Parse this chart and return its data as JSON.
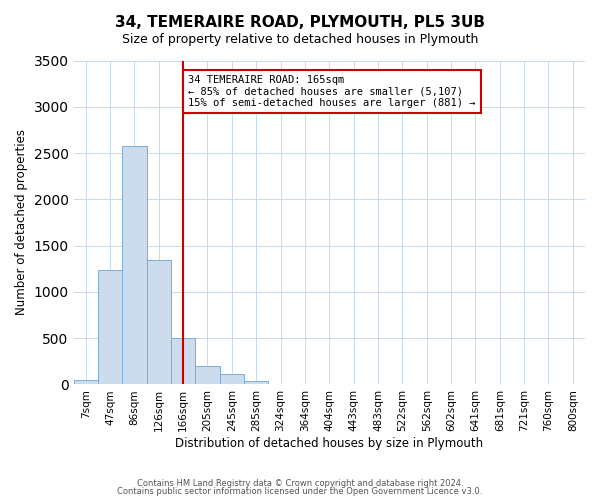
{
  "title": "34, TEMERAIRE ROAD, PLYMOUTH, PL5 3UB",
  "subtitle": "Size of property relative to detached houses in Plymouth",
  "xlabel": "Distribution of detached houses by size in Plymouth",
  "ylabel": "Number of detached properties",
  "bin_labels": [
    "7sqm",
    "47sqm",
    "86sqm",
    "126sqm",
    "166sqm",
    "205sqm",
    "245sqm",
    "285sqm",
    "324sqm",
    "364sqm",
    "404sqm",
    "443sqm",
    "483sqm",
    "522sqm",
    "562sqm",
    "602sqm",
    "641sqm",
    "681sqm",
    "721sqm",
    "760sqm",
    "800sqm"
  ],
  "bar_values": [
    50,
    1240,
    2580,
    1340,
    500,
    200,
    110,
    40,
    10,
    2,
    1,
    0,
    0,
    0,
    0,
    0,
    0,
    0,
    0,
    0,
    0
  ],
  "bar_color": "#ccdcec",
  "bar_edgecolor": "#7bafd4",
  "vline_x": 4,
  "vline_color": "#cc0000",
  "ylim": [
    0,
    3500
  ],
  "annotation_title": "34 TEMERAIRE ROAD: 165sqm",
  "annotation_line1": "← 85% of detached houses are smaller (5,107)",
  "annotation_line2": "15% of semi-detached houses are larger (881) →",
  "annotation_box_color": "#ffffff",
  "annotation_box_edgecolor": "#cc0000",
  "footer1": "Contains HM Land Registry data © Crown copyright and database right 2024.",
  "footer2": "Contains public sector information licensed under the Open Government Licence v3.0.",
  "background_color": "#ffffff",
  "grid_color": "#c8daea"
}
